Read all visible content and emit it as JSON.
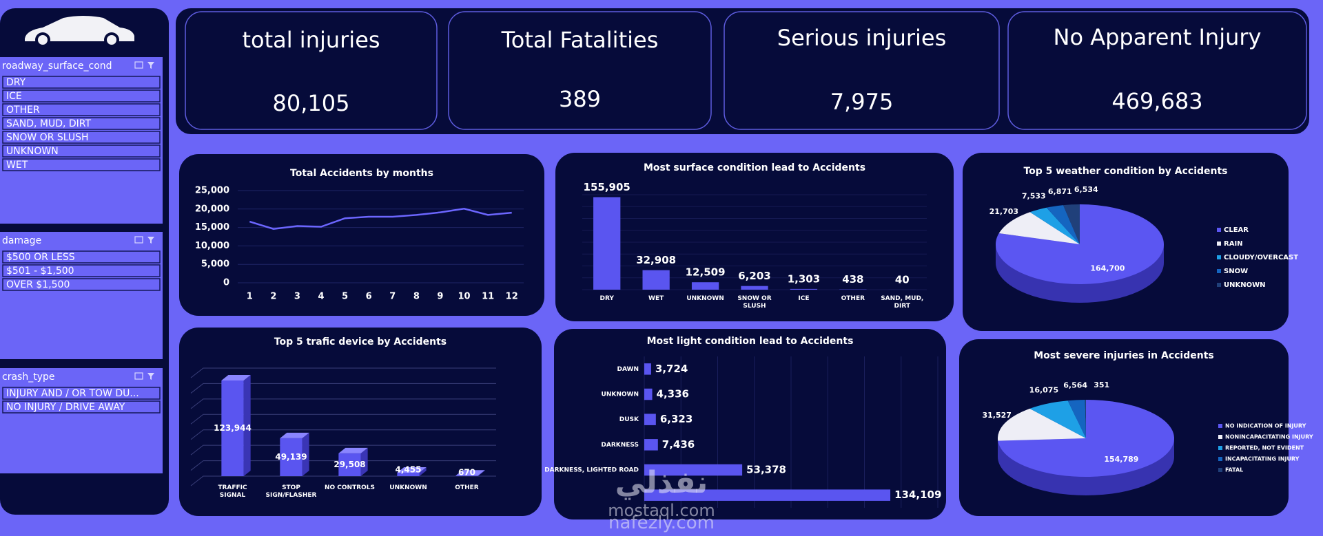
{
  "sidebar": {
    "slicers": [
      {
        "title": "roadway_surface_cond",
        "items": [
          "DRY",
          "ICE",
          "OTHER",
          "SAND, MUD, DIRT",
          "SNOW OR SLUSH",
          "UNKNOWN",
          "WET"
        ]
      },
      {
        "title": "damage",
        "items": [
          "$500 OR LESS",
          "$501 - $1,500",
          "OVER $1,500"
        ]
      },
      {
        "title": "crash_type",
        "items": [
          "INJURY AND / OR TOW DU...",
          "NO INJURY / DRIVE AWAY"
        ]
      }
    ]
  },
  "kpis": [
    {
      "label": "total injuries",
      "value": "80,105"
    },
    {
      "label": "Total Fatalities",
      "value": "389"
    },
    {
      "label": "Serious injuries",
      "value": "7,975"
    },
    {
      "label": "No Apparent Injury",
      "value": "469,683"
    }
  ],
  "chart_data": [
    {
      "type": "line",
      "title": "Total Accidents by months",
      "categories": [
        1,
        2,
        3,
        4,
        5,
        6,
        7,
        8,
        9,
        10,
        11,
        12
      ],
      "values": [
        16600,
        14600,
        15400,
        15200,
        17500,
        17900,
        17900,
        18400,
        19100,
        20100,
        18400,
        19000
      ],
      "color": "#6c66ff",
      "ylim": [
        0,
        25000
      ],
      "yticks": [
        0,
        {
          "value": 5000,
          "label": "5,000"
        },
        {
          "value": 10000,
          "label": "10,000"
        },
        {
          "value": 15000,
          "label": "15,000"
        },
        {
          "value": 20000,
          "label": "20,000"
        },
        {
          "value": 25000,
          "label": "25,000"
        }
      ],
      "grid": true
    },
    {
      "type": "bar",
      "title": "Most surface condition lead to Accidents",
      "categories": [
        "DRY",
        "WET",
        "UNKNOWN",
        "SNOW OR SLUSH",
        "ICE",
        "OTHER",
        "SAND, MUD, DIRT"
      ],
      "values": [
        155905,
        32908,
        12509,
        6203,
        1303,
        438,
        40
      ],
      "value_labels": [
        "155,905",
        "32,908",
        "12,509",
        "6,203",
        "1,303",
        "438",
        "40"
      ],
      "color": "#5a55f0",
      "ylim": [
        0,
        160000
      ],
      "yticks": [
        0,
        20000,
        40000,
        60000,
        80000,
        100000,
        120000,
        140000,
        160000
      ],
      "grid": true
    },
    {
      "type": "pie",
      "title": "Top 5 weather condition by Accidents",
      "3d": true,
      "categories": [
        "CLEAR",
        "RAIN",
        "CLOUDY/OVERCAST",
        "SNOW",
        "UNKNOWN"
      ],
      "values": [
        164700,
        21703,
        7533,
        6871,
        6534
      ],
      "value_labels": [
        "164,700",
        "21,703",
        "7,533",
        "6,871",
        "6,534"
      ],
      "colors": [
        "#5b56f2",
        "#eeeef6",
        "#1ea0e6",
        "#1565c0",
        "#20407a"
      ],
      "legend": "right"
    },
    {
      "type": "bar",
      "title": "Top 5 trafic device by Accidents",
      "3d": true,
      "categories": [
        "TRAFFIC SIGNAL",
        "STOP SIGN/FLASHER",
        "NO CONTROLS",
        "UNKNOWN",
        "OTHER"
      ],
      "values": [
        123944,
        49139,
        29508,
        4455,
        670
      ],
      "value_labels": [
        "123,944",
        "49,139",
        "29,508",
        "4,455",
        "670"
      ],
      "color": "#5a55f0",
      "ylim": [
        0,
        140000
      ],
      "yticks": [
        0,
        20000,
        40000,
        60000,
        80000,
        100000,
        120000,
        140000
      ],
      "grid": true
    },
    {
      "type": "bar",
      "orientation": "horizontal",
      "title": "Most light condition lead to Accidents",
      "categories": [
        "DAWN",
        "UNKNOWN",
        "DUSK",
        "DARKNESS",
        "DARKNESS, LIGHTED ROAD",
        null
      ],
      "values": [
        3724,
        4336,
        6323,
        7436,
        53378,
        134109
      ],
      "value_labels": [
        "3,724",
        "4,336",
        "6,323",
        "7,436",
        "53,378",
        "134,109"
      ],
      "color": "#5a55f0",
      "xlim": [
        0,
        160000
      ],
      "xticks": [
        0,
        20000,
        40000,
        60000,
        80000,
        100000,
        120000,
        140000,
        160000
      ],
      "grid": true
    },
    {
      "type": "pie",
      "title": "Most severe injuries in Accidents",
      "3d": true,
      "categories": [
        "NO INDICATION OF INJURY",
        "NONINCAPACITATING INJURY",
        "REPORTED, NOT EVIDENT",
        "INCAPACITATING INJURY",
        "FATAL"
      ],
      "values": [
        154789,
        31527,
        16075,
        6564,
        351
      ],
      "value_labels": [
        "154,789",
        "31,527",
        "16,075",
        "6,564",
        "351"
      ],
      "colors": [
        "#5b56f2",
        "#eeeef6",
        "#1ea0e6",
        "#1565c0",
        "#20407a"
      ],
      "legend": "right"
    }
  ],
  "watermark": {
    "brand": "نفذلي",
    "sites": [
      "mostaql.com",
      "nafezly.com"
    ]
  }
}
